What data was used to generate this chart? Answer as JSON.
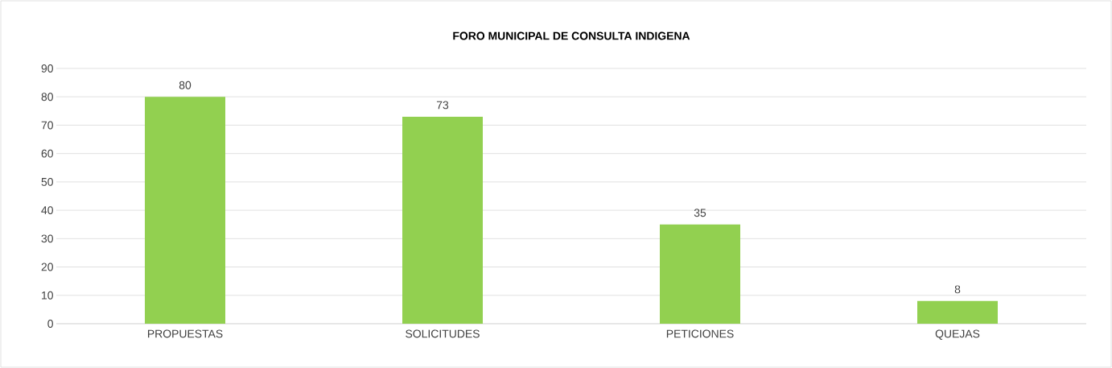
{
  "chart_data": {
    "type": "bar",
    "title": "FORO MUNICIPAL DE CONSULTA INDIGENA",
    "categories": [
      "PROPUESTAS",
      "SOLICITUDES",
      "PETICIONES",
      "QUEJAS"
    ],
    "values": [
      80,
      73,
      35,
      8
    ],
    "color": "#92d050",
    "ylim": [
      0,
      90
    ],
    "yticks": [
      0,
      10,
      20,
      30,
      40,
      50,
      60,
      70,
      80,
      90
    ],
    "grid": "y",
    "data_labels": true
  }
}
